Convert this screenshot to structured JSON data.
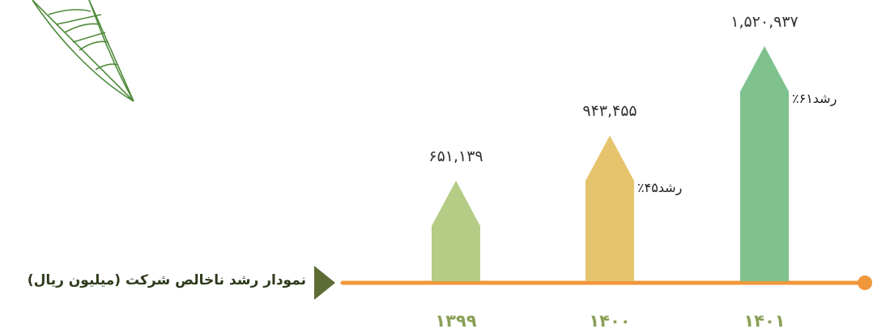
{
  "chart_data": {
    "type": "bar",
    "title": "نمودار رشد ناخالص شرکت (میلیون ریال)",
    "categories": [
      "۱۳۹۹",
      "۱۴۰۰",
      "۱۴۰۱"
    ],
    "values": [
      651139,
      943455,
      1520937
    ],
    "value_labels": [
      "۶۵۱,۱۳۹",
      "۹۴۳,۴۵۵",
      "۱,۵۲۰,۹۳۷"
    ],
    "growth_labels": [
      "",
      "٪۴۵رشد",
      "٪۶۱رشد"
    ],
    "colors": [
      "#b5cc86",
      "#e6c46e",
      "#7fc28e"
    ],
    "axis_color": "#f0973a",
    "arrow_color": "#5d6b35",
    "decoration_color": "#4e8a3a",
    "ylim": [
      0,
      1700000
    ],
    "grid": false
  }
}
